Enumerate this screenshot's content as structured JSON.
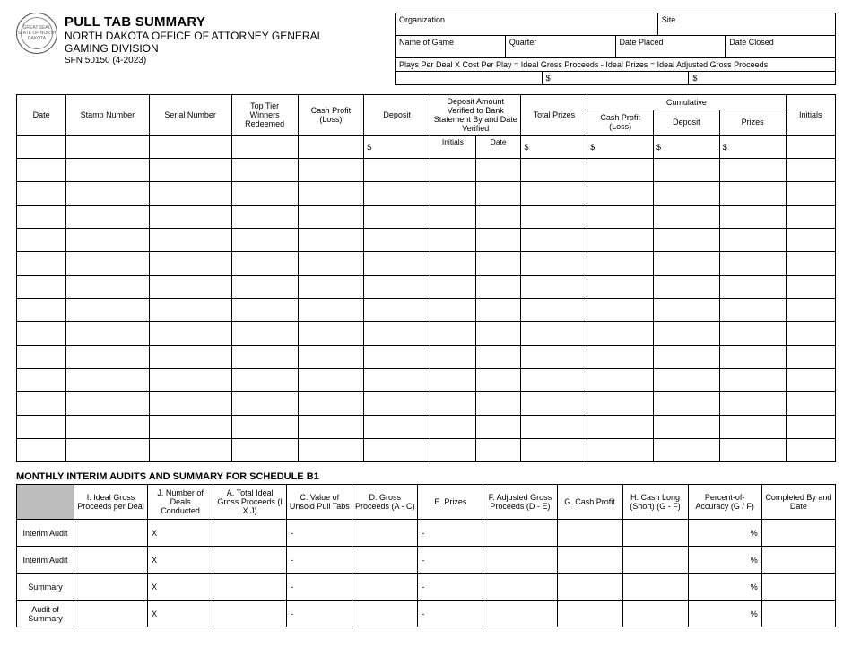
{
  "header": {
    "title": "PULL TAB SUMMARY",
    "subtitle1": "NORTH DAKOTA OFFICE OF ATTORNEY GENERAL",
    "subtitle2": "GAMING DIVISION",
    "formno": "SFN 50150  (4-2023)"
  },
  "info": {
    "organization": "Organization",
    "site": "Site",
    "name_of_game": "Name of Game",
    "quarter": "Quarter",
    "date_placed": "Date Placed",
    "date_closed": "Date Closed",
    "formula_line": "Plays Per Deal X   Cost Per Play  =     Ideal Gross Proceeds    - Ideal Prizes   =      Ideal Adjusted Gross Proceeds",
    "val1": "",
    "val2": "$",
    "val3": "$",
    "val4": "",
    "val5": ""
  },
  "main_headers": {
    "date": "Date",
    "stamp": "Stamp Number",
    "serial": "Serial Number",
    "toptier": "Top Tier Winners Redeemed",
    "cashprofit": "Cash Profit (Loss)",
    "deposit": "Deposit",
    "depamt": "Deposit Amount Verified to Bank Statement By and Date Verified",
    "totalprizes": "Total Prizes",
    "cumulative": "Cumulative",
    "cum_cash": "Cash Profit (Loss)",
    "cum_deposit": "Deposit",
    "cum_prizes": "Prizes",
    "initials": "Initials",
    "sub_initials": "Initials",
    "sub_date": "Date"
  },
  "main_first_row": {
    "deposit": "$",
    "totalprizes": "$",
    "cum_cash": "$",
    "cum_deposit": "$",
    "cum_prizes": "$"
  },
  "blank_rows": 13,
  "section2_title": "MONTHLY INTERIM AUDITS AND SUMMARY FOR SCHEDULE B1",
  "audit_headers": {
    "blank": "",
    "i": "I. Ideal Gross Proceeds per Deal",
    "j": "J. Number of Deals Conducted",
    "a": "A. Total Ideal Gross Proceeds (I X J)",
    "c": "C. Value of Unsold Pull Tabs",
    "d": "D. Gross Proceeds (A - C)",
    "e": "E. Prizes",
    "f": "F. Adjusted Gross Proceeds (D - E)",
    "g": "G. Cash Profit",
    "h": "H. Cash Long (Short) (G - F)",
    "pct": "Percent-of-Accuracy (G / F)",
    "completed": "Completed By and Date"
  },
  "audit_rows": [
    {
      "label": "Interim Audit",
      "j": "X",
      "c": "-",
      "e": "-",
      "pct": "%"
    },
    {
      "label": "Interim Audit",
      "j": "X",
      "c": "-",
      "e": "-",
      "pct": "%"
    },
    {
      "label": "Summary",
      "j": "X",
      "c": "-",
      "e": "-",
      "pct": "%"
    },
    {
      "label": "Audit of Summary",
      "j": "X",
      "c": "-",
      "e": "-",
      "pct": "%"
    }
  ],
  "colors": {
    "border": "#000000",
    "shade": "#bdbdbd",
    "background": "#ffffff"
  }
}
